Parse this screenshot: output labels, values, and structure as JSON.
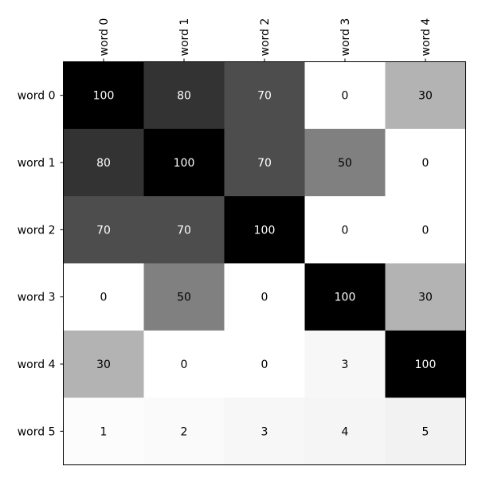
{
  "chart_data": {
    "type": "heatmap",
    "colormap": "greys",
    "value_range": [
      0,
      100
    ],
    "x_tick_position": "top",
    "x_tick_rotation": 90,
    "grid": false,
    "columns": [
      "word 0",
      "word 1",
      "word 2",
      "word 3",
      "word 4"
    ],
    "rows": [
      "word 0",
      "word 1",
      "word 2",
      "word 3",
      "word 4",
      "word 5"
    ],
    "values": [
      [
        100,
        80,
        70,
        0,
        30
      ],
      [
        80,
        100,
        70,
        50,
        0
      ],
      [
        70,
        70,
        100,
        0,
        0
      ],
      [
        0,
        50,
        0,
        100,
        30
      ],
      [
        30,
        0,
        0,
        3,
        100
      ],
      [
        1,
        2,
        3,
        4,
        5
      ]
    ],
    "colors": {
      "frame": "#000000",
      "light_text": "#ffffff",
      "dark_text": "#000000"
    }
  }
}
